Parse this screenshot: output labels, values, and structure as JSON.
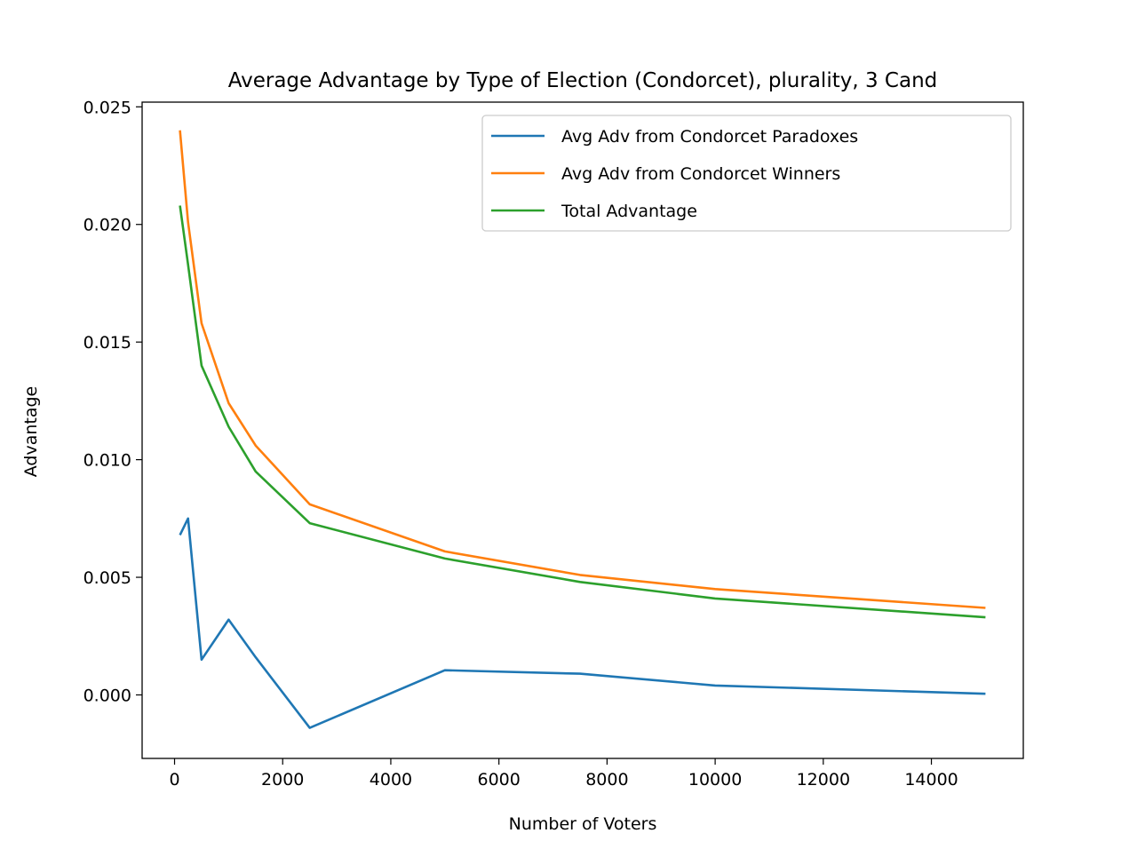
{
  "chart_data": {
    "type": "line",
    "title": "Average Advantage by Type of Election (Condorcet), plurality, 3 Cand",
    "xlabel": "Number of Voters",
    "ylabel": "Advantage",
    "xlim": [
      -600,
      15700
    ],
    "ylim": [
      -0.0027,
      0.0252
    ],
    "x_ticks": [
      0,
      2000,
      4000,
      6000,
      8000,
      10000,
      12000,
      14000
    ],
    "x_tick_labels": [
      "0",
      "2000",
      "4000",
      "6000",
      "8000",
      "10000",
      "12000",
      "14000"
    ],
    "y_ticks": [
      0.0,
      0.005,
      0.01,
      0.015,
      0.02,
      0.025
    ],
    "y_tick_labels": [
      "0.000",
      "0.005",
      "0.010",
      "0.015",
      "0.020",
      "0.025"
    ],
    "grid": false,
    "legend_position": "top-right",
    "x": [
      100,
      250,
      500,
      1000,
      1500,
      2500,
      5000,
      7500,
      10000,
      15000
    ],
    "series": [
      {
        "name": "Avg Adv from Condorcet Paradoxes",
        "color": "#1f77b4",
        "values": [
          0.0068,
          0.0075,
          0.0015,
          0.0032,
          0.0016,
          -0.0014,
          0.00105,
          0.0009,
          0.0004,
          5e-05
        ]
      },
      {
        "name": "Avg Adv from Condorcet Winners",
        "color": "#ff7f0e",
        "values": [
          0.024,
          0.0201,
          0.0158,
          0.0124,
          0.0106,
          0.0081,
          0.0061,
          0.0051,
          0.0045,
          0.0037
        ]
      },
      {
        "name": "Total Advantage",
        "color": "#2ca02c",
        "values": [
          0.0208,
          0.0183,
          0.014,
          0.0114,
          0.0095,
          0.0073,
          0.0058,
          0.0048,
          0.0041,
          0.0033
        ]
      }
    ]
  }
}
